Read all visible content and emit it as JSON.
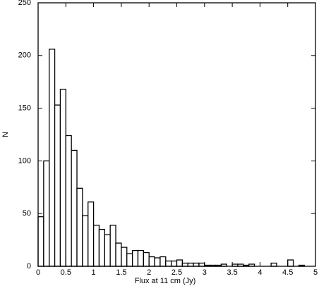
{
  "chart_data": {
    "type": "histogram",
    "xlabel": "Flux at 11 cm (Jy)",
    "ylabel": "N",
    "bins": [
      0,
      0.1,
      0.2,
      0.3,
      0.4,
      0.5,
      0.6,
      0.7,
      0.8,
      0.9,
      1,
      1.1,
      1.2,
      1.3,
      1.4,
      1.5,
      1.6,
      1.7,
      1.8,
      1.9,
      2,
      2.1,
      2.2,
      2.3,
      2.4,
      2.5,
      2.6,
      2.7,
      2.8,
      2.9,
      3,
      3.1,
      3.2,
      3.3,
      3.4,
      3.5,
      3.6,
      3.7,
      3.8,
      3.9,
      4,
      4.1,
      4.2,
      4.3,
      4.4,
      4.5,
      4.6,
      4.7,
      4.8,
      4.9,
      5
    ],
    "values": [
      47,
      100,
      206,
      153,
      168,
      124,
      110,
      74,
      48,
      61,
      39,
      35,
      30,
      39,
      22,
      18,
      12,
      15,
      15,
      13,
      9,
      8,
      9,
      5,
      5,
      6,
      3,
      3,
      3,
      3,
      1,
      1,
      1,
      2,
      0,
      2,
      2,
      1,
      2,
      0,
      0,
      0,
      3,
      0,
      0,
      6,
      0,
      1,
      0,
      0
    ],
    "color": "#ffffff",
    "xlim": [
      0,
      5
    ],
    "ylim": [
      0,
      250
    ],
    "xticks": [
      0,
      0.5,
      1,
      1.5,
      2,
      2.5,
      3,
      3.5,
      4,
      4.5,
      5
    ],
    "yticks": [
      0,
      50,
      100,
      150,
      200,
      250
    ]
  }
}
